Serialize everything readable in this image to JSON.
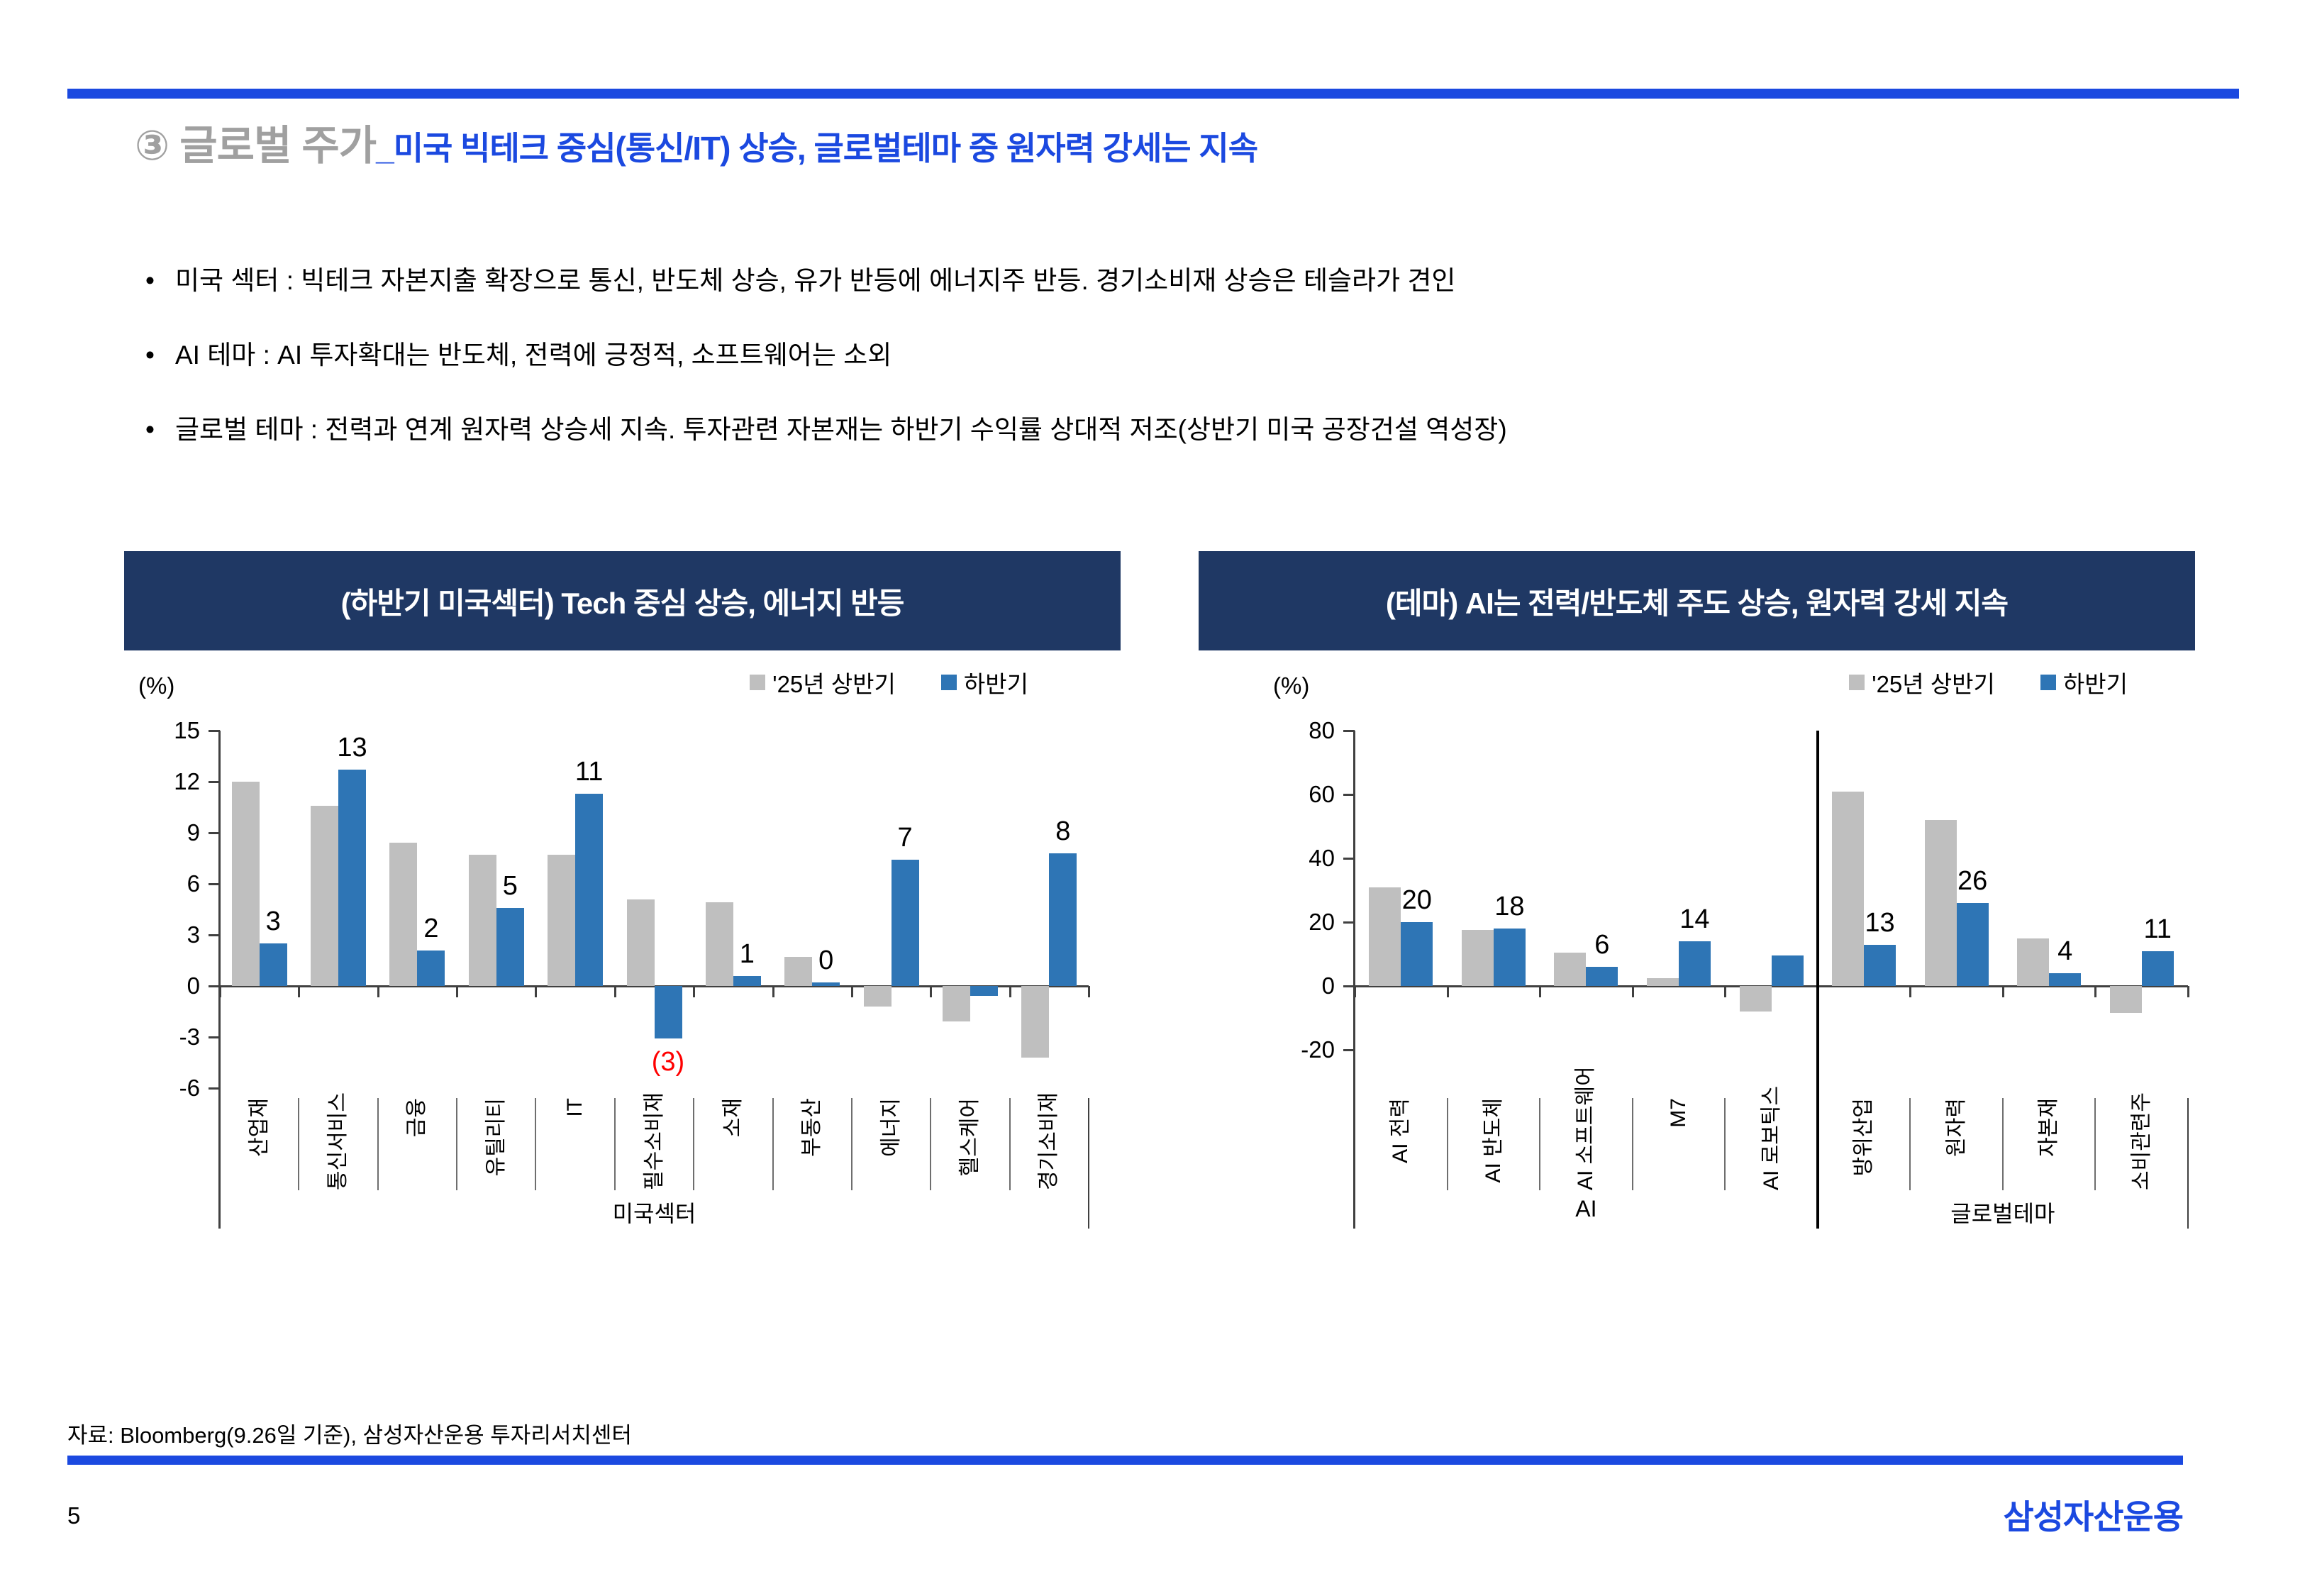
{
  "header": {
    "title_prefix": "③ 글로벌 주가",
    "title_rest": "_미국 빅테크 중심(통신/IT) 상승, 글로벌테마 중 원자력 강세는 지속"
  },
  "bullets": [
    "미국 섹터 : 빅테크 자본지출 확장으로 통신, 반도체 상승, 유가 반등에 에너지주 반등. 경기소비재 상승은 테슬라가 견인",
    "AI 테마 : AI 투자확대는 반도체, 전력에 긍정적, 소프트웨어는 소외",
    "글로벌 테마 : 전력과 연계 원자력 상승세 지속. 투자관련 자본재는 하반기 수익률 상대적 저조(상반기 미국 공장건설 역성장)"
  ],
  "footer": {
    "source": "자료: Bloomberg(9.26일 기준), 삼성자산운용 투자리서치센터",
    "page_number": "5",
    "logo": "삼성자산운용"
  },
  "colors": {
    "accent_blue": "#1B49E0",
    "navy_header": "#1F3864",
    "bar_gray": "#BFBFBF",
    "bar_blue": "#2E75B5",
    "title_gray": "#A0A0A0",
    "label_red": "#FF0000"
  },
  "chart_data": [
    {
      "type": "bar",
      "title": "(하반기 미국섹터) Tech 중심 상승, 에너지 반등",
      "unit_label": "(%)",
      "legend": [
        "'25년 상반기",
        "하반기"
      ],
      "ylim": [
        -6,
        15
      ],
      "yticks": [
        15,
        12,
        9,
        6,
        3,
        0,
        -3,
        -6
      ],
      "categories": [
        "산업재",
        "통신서비스",
        "금융",
        "유틸리티",
        "IT",
        "필수소비재",
        "소재",
        "부동산",
        "에너지",
        "헬스케어",
        "경기소비재"
      ],
      "series": [
        {
          "name": "'25년 상반기",
          "color": "#BFBFBF",
          "values": [
            12.0,
            10.6,
            8.4,
            7.7,
            7.7,
            5.1,
            4.9,
            1.7,
            -1.2,
            -2.1,
            -4.2
          ]
        },
        {
          "name": "하반기",
          "color": "#2E75B5",
          "values": [
            2.5,
            12.7,
            2.1,
            4.6,
            11.3,
            -3.1,
            0.6,
            0.2,
            7.4,
            -0.6,
            7.8
          ],
          "data_labels": [
            "3",
            "13",
            "2",
            "5",
            "11",
            "(3)",
            "1",
            "0",
            "7",
            "",
            "8"
          ],
          "data_label_colors": [
            "#000000",
            "#000000",
            "#000000",
            "#000000",
            "#000000",
            "#FF0000",
            "#000000",
            "#000000",
            "#000000",
            "",
            "#000000"
          ]
        }
      ],
      "groups": [
        {
          "label": "미국섹터",
          "span": 11
        }
      ]
    },
    {
      "type": "bar",
      "title": "(테마) AI는 전력/반도체 주도 상승, 원자력 강세 지속",
      "unit_label": "(%)",
      "legend": [
        "'25년 상반기",
        "하반기"
      ],
      "ylim": [
        -20,
        80
      ],
      "yticks": [
        80,
        60,
        40,
        20,
        0,
        -20
      ],
      "categories": [
        "AI 전력",
        "AI 반도체",
        "AI 소프트웨어",
        "M7",
        "AI 로보틱스",
        "방위산업",
        "원자력",
        "자본재",
        "소비관련주"
      ],
      "series": [
        {
          "name": "'25년 상반기",
          "color": "#BFBFBF",
          "values": [
            31,
            17.5,
            10.5,
            2.5,
            -8,
            61,
            52,
            15,
            -8.5
          ]
        },
        {
          "name": "하반기",
          "color": "#2E75B5",
          "values": [
            20,
            18,
            6,
            14,
            9.5,
            13,
            26,
            4,
            11
          ],
          "data_labels": [
            "20",
            "18",
            "6",
            "14",
            "",
            "13",
            "26",
            "4",
            "11"
          ],
          "data_label_colors": [
            "#000000",
            "#000000",
            "#000000",
            "#000000",
            "",
            "#000000",
            "#000000",
            "#000000",
            "#000000"
          ]
        }
      ],
      "groups": [
        {
          "label": "AI",
          "span": 5
        },
        {
          "label": "글로벌테마",
          "span": 4
        }
      ],
      "divider_after": 5
    }
  ]
}
